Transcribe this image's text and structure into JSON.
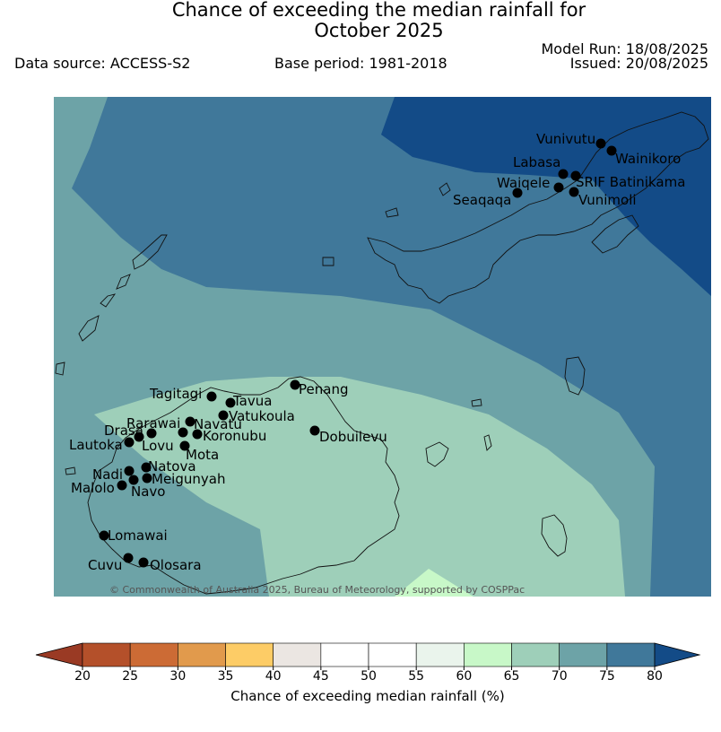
{
  "header": {
    "title_line1": "Chance of exceeding the median rainfall for",
    "title_line2": "October 2025",
    "data_source": "Data source: ACCESS-S2",
    "base_period": "Base period: 1981-2018",
    "model_run": "Model Run: 18/08/2025",
    "issued": "Issued: 20/08/2025"
  },
  "map": {
    "copyright": "© Commonwealth of Australia 2025, Bureau of Meteorology, supported by COSPPac",
    "towns": [
      {
        "name": "Vunivutu"
      },
      {
        "name": "Wainikoro"
      },
      {
        "name": "Labasa"
      },
      {
        "name": "SRIF Batinikama"
      },
      {
        "name": "Waiqele"
      },
      {
        "name": "Vunimoli"
      },
      {
        "name": "Seaqaqa"
      },
      {
        "name": "Penang"
      },
      {
        "name": "Tagitagi"
      },
      {
        "name": "Tavua"
      },
      {
        "name": "Vatukoula"
      },
      {
        "name": "Rarawai"
      },
      {
        "name": "Navatu"
      },
      {
        "name": "Drasa"
      },
      {
        "name": "Koronubu"
      },
      {
        "name": "Lautoka"
      },
      {
        "name": "Lovu"
      },
      {
        "name": "Dobuilevu"
      },
      {
        "name": "Mota"
      },
      {
        "name": "Natova"
      },
      {
        "name": "Nadi"
      },
      {
        "name": "Meigunyah"
      },
      {
        "name": "Malolo"
      },
      {
        "name": "Navo"
      },
      {
        "name": "Lomawai"
      },
      {
        "name": "Cuvu"
      },
      {
        "name": "Olosara"
      }
    ],
    "zone_colors": {
      "z80": "#134b87",
      "z75_80": "#40789a",
      "z70_75": "#6da3a7",
      "z65_70": "#9ecfb9",
      "z60_65": "#c8f8c8"
    }
  },
  "colorbar": {
    "label": "Chance of exceeding median rainfall (%)",
    "ticks": [
      "20",
      "25",
      "30",
      "35",
      "40",
      "45",
      "50",
      "55",
      "60",
      "65",
      "70",
      "75",
      "80"
    ],
    "colors": [
      "#9a3a24",
      "#b4502a",
      "#cc6b35",
      "#e19a4c",
      "#fdcc66",
      "#ebe6e2",
      "#ffffff",
      "#ffffff",
      "#eaf4ec",
      "#c8f8c8",
      "#9ecfb9",
      "#6da3a7",
      "#40789a",
      "#134b87"
    ]
  }
}
